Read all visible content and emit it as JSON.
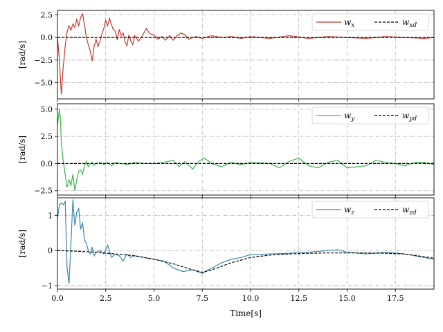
{
  "chart_data": [
    {
      "type": "line",
      "ylabel": "[rad/s]",
      "xlim": [
        0,
        19.5
      ],
      "ylim": [
        -6.8,
        3.0
      ],
      "yticks": [
        -5.0,
        -2.5,
        0.0,
        2.5
      ],
      "ytick_labels": [
        "−5.0",
        "−2.5",
        "0.0",
        "2.5"
      ],
      "grid": true,
      "legend_position": "top-right",
      "series": [
        {
          "name": "w_x",
          "name_main": "w",
          "name_sub": "x",
          "color": "#c0392b",
          "style": "solid",
          "x": [
            0,
            0.1,
            0.2,
            0.3,
            0.4,
            0.5,
            0.6,
            0.7,
            0.8,
            0.9,
            1.0,
            1.1,
            1.2,
            1.3,
            1.4,
            1.5,
            1.6,
            1.7,
            1.8,
            1.9,
            2.0,
            2.1,
            2.2,
            2.3,
            2.4,
            2.5,
            2.6,
            2.7,
            2.8,
            2.9,
            3.0,
            3.1,
            3.2,
            3.3,
            3.4,
            3.5,
            3.6,
            3.7,
            3.8,
            3.9,
            4.0,
            4.2,
            4.4,
            4.6,
            4.8,
            5.0,
            5.2,
            5.4,
            5.6,
            5.8,
            6.0,
            6.2,
            6.4,
            6.6,
            6.8,
            7.0,
            7.2,
            7.5,
            8.0,
            8.5,
            9.0,
            9.5,
            10.0,
            11.0,
            12.0,
            13.0,
            14.0,
            15.0,
            16.0,
            17.0,
            18.0,
            19.0,
            19.5
          ],
          "y": [
            0.0,
            -2.5,
            -6.3,
            -3.2,
            -1.0,
            0.6,
            1.3,
            0.8,
            1.5,
            1.1,
            2.0,
            1.3,
            2.2,
            2.6,
            1.4,
            0.0,
            -0.8,
            -1.5,
            -2.6,
            -1.0,
            -0.2,
            -1.0,
            -0.4,
            0.4,
            1.0,
            1.9,
            1.3,
            2.1,
            1.4,
            0.8,
            0.7,
            -0.3,
            0.9,
            0.2,
            0.5,
            -0.5,
            -0.9,
            0.3,
            -0.4,
            -0.8,
            0.2,
            -0.4,
            0.2,
            1.0,
            0.4,
            0.3,
            -0.2,
            0.1,
            -0.3,
            0.2,
            -0.3,
            0.2,
            0.5,
            0.3,
            -0.2,
            0.0,
            0.1,
            -0.1,
            0.2,
            0.0,
            0.1,
            -0.1,
            0.1,
            -0.1,
            0.2,
            -0.1,
            0.1,
            0.0,
            -0.1,
            0.1,
            0.0,
            -0.1,
            0.0
          ]
        },
        {
          "name": "w_xd",
          "name_main": "w",
          "name_sub": "xd",
          "color": "#000000",
          "style": "dashed",
          "x": [
            0,
            19.5
          ],
          "y": [
            0.0,
            0.0
          ]
        }
      ]
    },
    {
      "type": "line",
      "ylabel": "[rad/s]",
      "xlim": [
        0,
        19.5
      ],
      "ylim": [
        -2.9,
        5.5
      ],
      "yticks": [
        -2.5,
        0.0,
        2.5,
        5.0
      ],
      "ytick_labels": [
        "−2.5",
        "0.0",
        "2.5",
        "5.0"
      ],
      "grid": true,
      "legend_position": "top-right",
      "series": [
        {
          "name": "w_y",
          "name_main": "w",
          "name_sub": "y",
          "color": "#3cb44b",
          "style": "solid",
          "x": [
            0,
            0.1,
            0.15,
            0.2,
            0.3,
            0.4,
            0.5,
            0.6,
            0.7,
            0.8,
            0.9,
            1.0,
            1.1,
            1.2,
            1.3,
            1.4,
            1.5,
            1.6,
            1.7,
            1.8,
            1.9,
            2.0,
            2.2,
            2.4,
            2.6,
            2.8,
            3.0,
            3.3,
            3.6,
            4.0,
            4.5,
            5.0,
            5.5,
            6.0,
            6.3,
            6.6,
            7.0,
            7.3,
            7.6,
            8.0,
            8.5,
            9.0,
            9.5,
            10.0,
            11.0,
            11.5,
            12.0,
            12.5,
            13.0,
            13.5,
            14.0,
            14.5,
            15.0,
            16.0,
            16.5,
            17.0,
            17.5,
            18.0,
            18.5,
            19.0,
            19.5
          ],
          "y": [
            3.5,
            5.0,
            4.2,
            2.0,
            0.2,
            -1.0,
            -2.2,
            -1.5,
            -2.0,
            -1.0,
            -2.5,
            -1.5,
            -0.7,
            -0.6,
            -1.0,
            -0.2,
            0.2,
            -0.3,
            0.0,
            0.1,
            -0.2,
            0.0,
            0.1,
            -0.1,
            0.1,
            -0.2,
            0.1,
            0.0,
            -0.1,
            0.1,
            0.0,
            0.0,
            0.1,
            0.3,
            -0.3,
            0.2,
            -0.5,
            0.2,
            0.5,
            0.0,
            -0.3,
            0.1,
            -0.1,
            0.1,
            0.0,
            -0.4,
            0.2,
            0.5,
            -0.2,
            -0.4,
            0.1,
            0.3,
            -0.4,
            -0.2,
            0.3,
            0.1,
            0.0,
            -0.2,
            0.1,
            0.1,
            -0.1
          ]
        },
        {
          "name": "w_yd",
          "name_main": "w",
          "name_sub": "yd",
          "color": "#000000",
          "style": "dashed",
          "x": [
            0,
            19.5
          ],
          "y": [
            0.0,
            0.0
          ]
        }
      ]
    },
    {
      "type": "line",
      "xlabel": "Time[s]",
      "ylabel": "[rad/s]",
      "xlim": [
        0,
        19.5
      ],
      "ylim": [
        -1.1,
        1.5
      ],
      "yticks": [
        -1,
        0,
        1
      ],
      "ytick_labels": [
        "−1",
        "0",
        "1"
      ],
      "xticks": [
        0,
        2.5,
        5,
        7.5,
        10,
        12.5,
        15,
        17.5
      ],
      "xtick_labels": [
        "0.0",
        "2.5",
        "5.0",
        "7.5",
        "10.0",
        "12.5",
        "15.0",
        "17.5"
      ],
      "grid": true,
      "legend_position": "top-right",
      "series": [
        {
          "name": "w_z",
          "name_main": "w",
          "name_sub": "z",
          "color": "#3a85a8",
          "style": "solid",
          "x": [
            0,
            0.1,
            0.2,
            0.3,
            0.4,
            0.5,
            0.6,
            0.7,
            0.8,
            0.9,
            1.0,
            1.1,
            1.2,
            1.3,
            1.4,
            1.5,
            1.6,
            1.7,
            1.8,
            1.9,
            2.0,
            2.2,
            2.4,
            2.6,
            2.8,
            3.0,
            3.2,
            3.4,
            3.6,
            3.8,
            4.0,
            4.5,
            5.0,
            5.5,
            6.0,
            6.5,
            7.0,
            7.5,
            8.0,
            8.5,
            9.0,
            9.5,
            10.0,
            11.0,
            12.0,
            12.5,
            13.0,
            14.0,
            14.5,
            15.0,
            16.0,
            17.0,
            18.0,
            19.0,
            19.5
          ],
          "y": [
            0.9,
            1.3,
            1.35,
            1.3,
            1.4,
            -0.5,
            -0.95,
            0.2,
            1.45,
            0.7,
            1.1,
            1.2,
            0.6,
            0.8,
            0.3,
            0.2,
            0.0,
            -0.1,
            0.1,
            -0.15,
            -0.05,
            0.0,
            -0.1,
            0.15,
            -0.2,
            -0.1,
            -0.15,
            -0.3,
            -0.1,
            -0.2,
            -0.15,
            -0.2,
            -0.25,
            -0.3,
            -0.5,
            -0.6,
            -0.55,
            -0.65,
            -0.5,
            -0.35,
            -0.25,
            -0.2,
            -0.12,
            -0.1,
            -0.08,
            -0.05,
            -0.05,
            0.0,
            0.02,
            -0.05,
            -0.1,
            -0.05,
            -0.1,
            -0.2,
            -0.25
          ]
        },
        {
          "name": "w_zd",
          "name_main": "w",
          "name_sub": "zd",
          "color": "#000000",
          "style": "dashed",
          "x": [
            0,
            1,
            2,
            3,
            4,
            5,
            6,
            7,
            7.5,
            8,
            9,
            10,
            11,
            12,
            13,
            14,
            15,
            16,
            17,
            18,
            19,
            19.5
          ],
          "y": [
            0.0,
            -0.02,
            -0.05,
            -0.1,
            -0.15,
            -0.25,
            -0.38,
            -0.55,
            -0.62,
            -0.55,
            -0.35,
            -0.2,
            -0.13,
            -0.1,
            -0.08,
            -0.07,
            -0.07,
            -0.07,
            -0.08,
            -0.1,
            -0.18,
            -0.22
          ]
        }
      ]
    }
  ]
}
